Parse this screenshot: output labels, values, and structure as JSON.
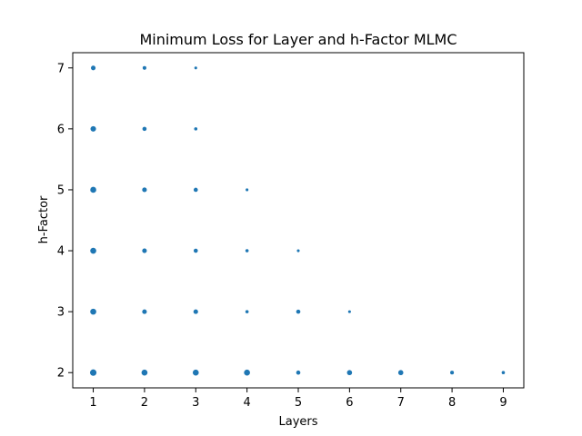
{
  "chart_data": {
    "type": "scatter",
    "title": "Minimum Loss for Layer and h-Factor MLMC",
    "xlabel": "Layers",
    "ylabel": "h-Factor",
    "xlim": [
      0.6,
      9.4
    ],
    "ylim": [
      1.75,
      7.25
    ],
    "xticks": [
      1,
      2,
      3,
      4,
      5,
      6,
      7,
      8,
      9
    ],
    "yticks": [
      2,
      3,
      4,
      5,
      6,
      7
    ],
    "grid": false,
    "color": "#1f77b4",
    "size_note": "marker size varies per point",
    "points": [
      {
        "x": 1,
        "y": 7,
        "size": 4.5
      },
      {
        "x": 2,
        "y": 7,
        "size": 3.5
      },
      {
        "x": 3,
        "y": 7,
        "size": 2.5
      },
      {
        "x": 1,
        "y": 6,
        "size": 5.5
      },
      {
        "x": 2,
        "y": 6,
        "size": 4
      },
      {
        "x": 3,
        "y": 6,
        "size": 3
      },
      {
        "x": 1,
        "y": 5,
        "size": 6
      },
      {
        "x": 2,
        "y": 5,
        "size": 4.5
      },
      {
        "x": 3,
        "y": 5,
        "size": 4
      },
      {
        "x": 4,
        "y": 5,
        "size": 2.5
      },
      {
        "x": 1,
        "y": 4,
        "size": 6
      },
      {
        "x": 2,
        "y": 4,
        "size": 4.5
      },
      {
        "x": 3,
        "y": 4,
        "size": 4
      },
      {
        "x": 4,
        "y": 4,
        "size": 3
      },
      {
        "x": 5,
        "y": 4,
        "size": 2.5
      },
      {
        "x": 1,
        "y": 3,
        "size": 6
      },
      {
        "x": 2,
        "y": 3,
        "size": 4.5
      },
      {
        "x": 3,
        "y": 3,
        "size": 4.5
      },
      {
        "x": 4,
        "y": 3,
        "size": 3
      },
      {
        "x": 5,
        "y": 3,
        "size": 4
      },
      {
        "x": 6,
        "y": 3,
        "size": 2.5
      },
      {
        "x": 1,
        "y": 2,
        "size": 6.5
      },
      {
        "x": 2,
        "y": 2,
        "size": 6
      },
      {
        "x": 3,
        "y": 2,
        "size": 6
      },
      {
        "x": 4,
        "y": 2,
        "size": 6
      },
      {
        "x": 5,
        "y": 2,
        "size": 4
      },
      {
        "x": 6,
        "y": 2,
        "size": 5
      },
      {
        "x": 7,
        "y": 2,
        "size": 5
      },
      {
        "x": 8,
        "y": 2,
        "size": 3.5
      },
      {
        "x": 9,
        "y": 2,
        "size": 3
      }
    ]
  }
}
